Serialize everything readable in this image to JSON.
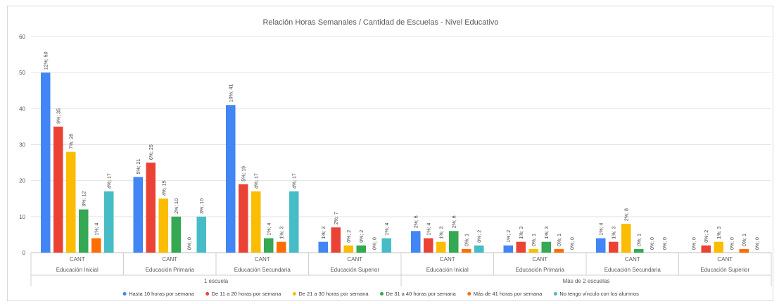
{
  "chart_data": {
    "type": "bar",
    "title": "Relación Horas Semanales / Cantidad de Escuelas - Nivel Educativo",
    "xlabel": "",
    "ylabel": "",
    "ylim": [
      0,
      60
    ],
    "yticks": [
      0,
      10,
      20,
      30,
      40,
      50,
      60
    ],
    "grid": true,
    "legend_position": "bottom",
    "measure_label": "CANT",
    "groups": [
      {
        "name": "1 escuela",
        "levels": [
          "Educación Inicial",
          "Educación Primaria",
          "Educación Secundaria",
          "Educación Superior"
        ]
      },
      {
        "name": "Más de 2 escuelas",
        "levels": [
          "Educación Inicial",
          "Educación Primaria",
          "Educación Secundaria",
          "Educación Superior"
        ]
      }
    ],
    "series": [
      {
        "name": "Hasta 10 horas por semana",
        "color": "#4285f4",
        "values": [
          50,
          21,
          41,
          3,
          6,
          2,
          4,
          0
        ],
        "labels": [
          "12%; 50",
          "5%; 21",
          "10%; 41",
          "1%; 3",
          "2%; 6",
          "1%; 2",
          "1%; 4",
          "0%; 0"
        ]
      },
      {
        "name": "De 11 a 20 horas por semana",
        "color": "#ea4335",
        "values": [
          35,
          25,
          19,
          7,
          4,
          3,
          3,
          2
        ],
        "labels": [
          "9%; 35",
          "6%; 25",
          "5%; 19",
          "2%; 7",
          "1%; 4",
          "1%; 3",
          "1%; 3",
          "0%; 2"
        ]
      },
      {
        "name": "De 21 a 30 horas por semana",
        "color": "#fbbc04",
        "values": [
          28,
          15,
          17,
          2,
          3,
          1,
          8,
          3
        ],
        "labels": [
          "7%; 28",
          "4%; 15",
          "4%; 17",
          "0%; 2",
          "1%; 3",
          "0%; 1",
          "2%; 8",
          "1%; 3"
        ]
      },
      {
        "name": "De 31 a 40 horas por semana",
        "color": "#34a853",
        "values": [
          12,
          10,
          4,
          2,
          6,
          3,
          1,
          0
        ],
        "labels": [
          "3%; 12",
          "2%; 10",
          "1%; 4",
          "0%; 2",
          "2%; 6",
          "1%; 3",
          "0%; 1",
          "0%; 0"
        ]
      },
      {
        "name": "Más de 41 horas por semana",
        "color": "#ff6d01",
        "values": [
          4,
          0,
          3,
          0,
          1,
          1,
          0,
          1
        ],
        "labels": [
          "1%; 4",
          "0%; 0",
          "1%; 3",
          "0%; 0",
          "0%; 1",
          "0%; 1",
          "0%; 0",
          "0%; 1"
        ]
      },
      {
        "name": "No tengo vínculo con los alumnos",
        "color": "#46bdc6",
        "values": [
          17,
          10,
          17,
          4,
          2,
          0,
          0,
          0
        ],
        "labels": [
          "4%; 17",
          "3%; 10",
          "4%; 17",
          "1%; 4",
          "0%; 2",
          "0%; 0",
          "0%; 0",
          "0%; 0"
        ]
      }
    ]
  }
}
